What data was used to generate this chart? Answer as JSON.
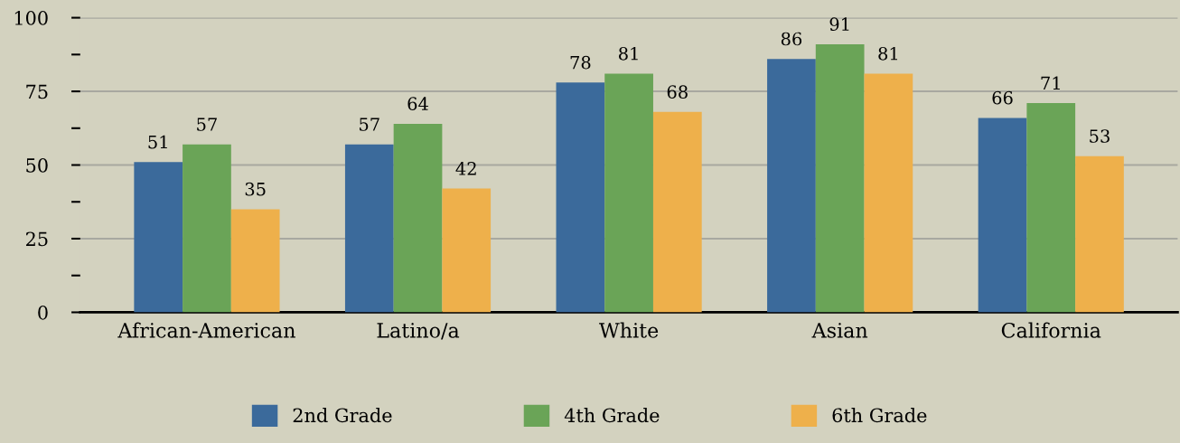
{
  "chart_data": {
    "type": "bar",
    "categories": [
      "African-American",
      "Latino/a",
      "White",
      "Asian",
      "California"
    ],
    "series": [
      {
        "name": "2nd Grade",
        "color": "#3b6a9b",
        "values": [
          51,
          57,
          78,
          86,
          66
        ]
      },
      {
        "name": "4th Grade",
        "color": "#6aa457",
        "values": [
          57,
          64,
          81,
          91,
          71
        ]
      },
      {
        "name": "6th Grade",
        "color": "#eeb04b",
        "values": [
          35,
          42,
          68,
          81,
          53
        ]
      }
    ],
    "ylim": [
      0,
      100
    ],
    "yticks": [
      0,
      {
        "value": 12.5,
        "label": null
      },
      25,
      {
        "value": 37.5,
        "label": null
      },
      50,
      {
        "value": 62.5,
        "label": null
      },
      75,
      {
        "value": 87.5,
        "label": null
      },
      100
    ],
    "grid": "y",
    "legend": "bottom",
    "data_labels": true
  }
}
